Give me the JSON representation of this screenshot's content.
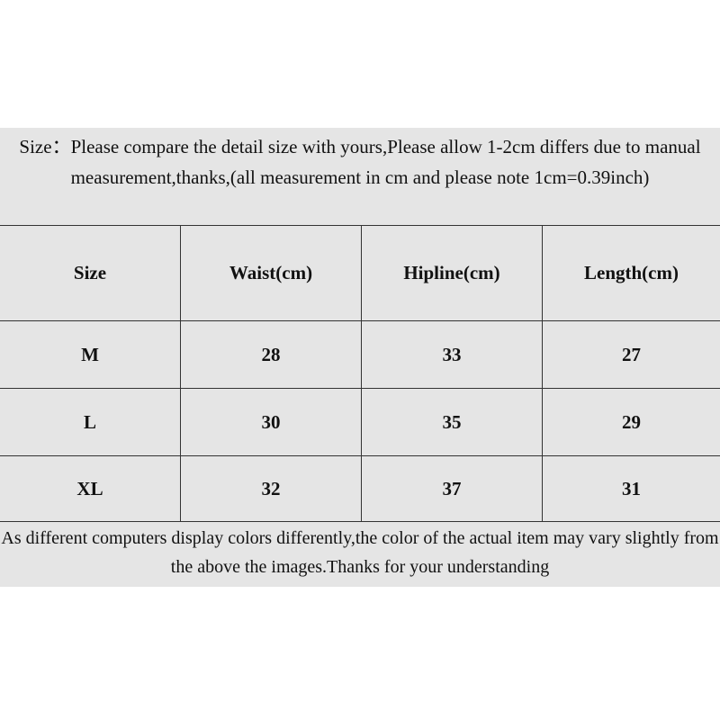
{
  "header": {
    "text": "Size：Please compare the detail size with yours,Please allow 1-2cm differs due to manual measurement,thanks,(all measurement in cm and please note 1cm=0.39inch)"
  },
  "table": {
    "columns": [
      "Size",
      "Waist(cm)",
      "Hipline(cm)",
      "Length(cm)"
    ],
    "rows": [
      [
        "M",
        "28",
        "33",
        "27"
      ],
      [
        "L",
        "30",
        "35",
        "29"
      ],
      [
        "XL",
        "32",
        "37",
        "31"
      ]
    ]
  },
  "footer": {
    "text": "As different computers display colors differently,the color of the actual item may vary slightly from the above the images.Thanks for your understanding"
  }
}
